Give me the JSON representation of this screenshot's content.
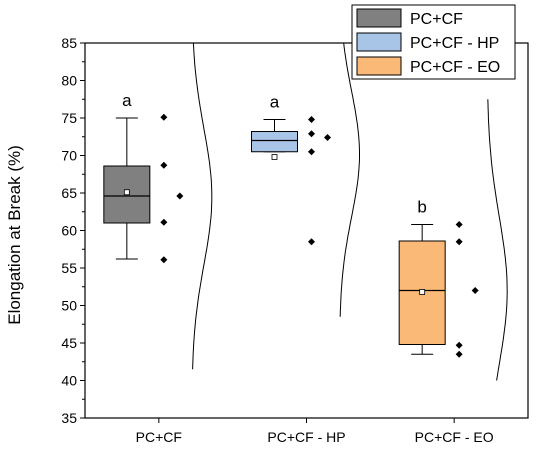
{
  "chart_data": {
    "type": "box",
    "ylabel": "Elongation at Break (%)",
    "ylim": [
      35,
      85
    ],
    "y_ticks": [
      35,
      40,
      45,
      50,
      55,
      60,
      65,
      70,
      75,
      80,
      85
    ],
    "y_tick_labels": [
      "35",
      "40",
      "45",
      "50",
      "55",
      "60",
      "65",
      "70",
      "75",
      "80",
      "85"
    ],
    "categories": [
      "PC+CF",
      "PC+CF - HP",
      "PC+CF - EO"
    ],
    "legend": {
      "position": "top-right",
      "entries": [
        "PC+CF",
        "PC+CF - HP",
        "PC+CF - EO"
      ]
    },
    "colors": {
      "PC+CF": "#808080",
      "PC+CF - HP": "#a8c4e6",
      "PC+CF - EO": "#fbb977",
      "axis": "#000000"
    },
    "series": [
      {
        "name": "PC+CF",
        "whisker_low": 56.2,
        "q1": 61.0,
        "median": 64.6,
        "q3": 68.6,
        "whisker_high": 75.0,
        "mean": 65.1,
        "points": [
          75.1,
          68.7,
          64.6,
          61.1,
          56.1
        ],
        "significance_letter": "a",
        "distribution_curve": {
          "peak_y": 64.5,
          "min_y": 41.5,
          "max_y": 88
        }
      },
      {
        "name": "PC+CF - HP",
        "whisker_low": 70.5,
        "q1": 70.5,
        "median": 72.0,
        "q3": 73.2,
        "whisker_high": 74.8,
        "mean": 69.8,
        "points": [
          74.8,
          72.9,
          72.4,
          70.5,
          58.5
        ],
        "significance_letter": "a",
        "distribution_curve": {
          "peak_y": 70.2,
          "min_y": 48.5,
          "max_y": 86
        }
      },
      {
        "name": "PC+CF - EO",
        "whisker_low": 43.5,
        "q1": 44.8,
        "median": 52.0,
        "q3": 58.6,
        "whisker_high": 60.8,
        "mean": 51.8,
        "points": [
          60.8,
          58.5,
          52.0,
          44.7,
          43.5
        ],
        "significance_letter": "b",
        "distribution_curve": {
          "peak_y": 52.0,
          "min_y": 40.0,
          "max_y": 77.5
        }
      }
    ]
  }
}
